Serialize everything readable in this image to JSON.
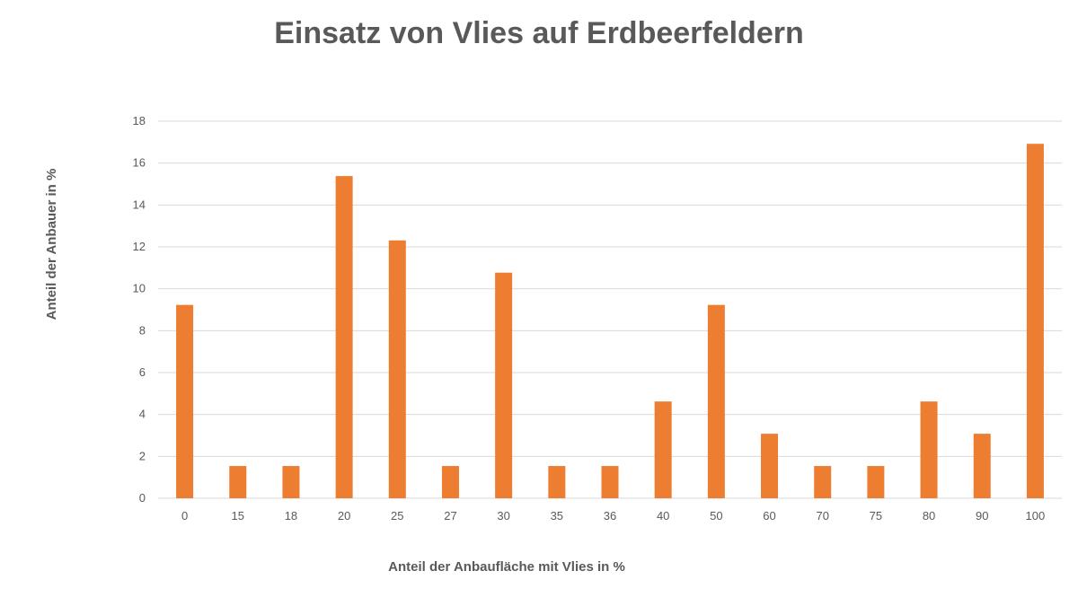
{
  "chart_data": {
    "type": "bar",
    "title": "Einsatz von Vlies auf Erdbeerfeldern",
    "xlabel": "Anteil der Anbaufläche mit Vlies in %",
    "ylabel": "Anteil der Anbauer in %",
    "categories": [
      "0",
      "15",
      "18",
      "20",
      "25",
      "27",
      "30",
      "35",
      "36",
      "40",
      "50",
      "60",
      "70",
      "75",
      "80",
      "90",
      "100"
    ],
    "values": [
      9.23,
      1.54,
      1.54,
      15.38,
      12.31,
      1.54,
      10.77,
      1.54,
      1.54,
      4.62,
      9.23,
      3.08,
      1.54,
      1.54,
      4.62,
      3.08,
      16.92
    ],
    "ylim": [
      0,
      18
    ],
    "yticks": [
      0,
      2,
      4,
      6,
      8,
      10,
      12,
      14,
      16,
      18
    ],
    "grid": true,
    "bar_color": "#ED7D31"
  }
}
